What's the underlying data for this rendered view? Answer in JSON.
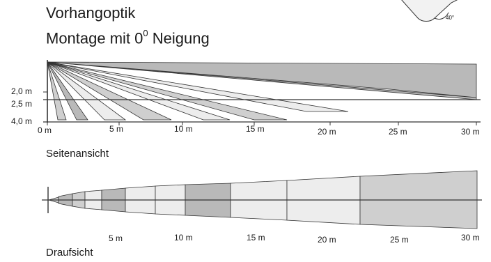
{
  "title": "Vorhangoptik",
  "subtitle_main": "Montage mit 0",
  "subtitle_sup": "0",
  "subtitle_tail": " Neigung",
  "angle_label": "40°",
  "height_labels": [
    "2,0 m",
    "2,5 m",
    "4,0 m"
  ],
  "side_axis_labels": [
    "0 m",
    "5 m",
    "10 m",
    "15 m",
    "20 m",
    "25 m",
    "30 m"
  ],
  "top_axis_labels": [
    "5 m",
    "10 m",
    "15 m",
    "20 m",
    "25 m",
    "30 m"
  ],
  "side_caption": "Seitenansicht",
  "top_caption": "Draufsicht",
  "colors": {
    "dark_fill": "#b9b9b9",
    "mid_fill": "#cfcfcf",
    "light_fill": "#ededed",
    "line": "#333333"
  }
}
